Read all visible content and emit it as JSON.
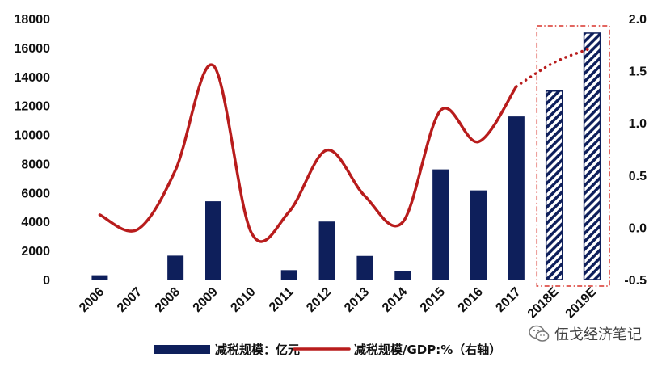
{
  "chart_data": {
    "type": "bar",
    "categories": [
      "2006",
      "2007",
      "2008",
      "2009",
      "2010",
      "2011",
      "2012",
      "2013",
      "2014",
      "2015",
      "2016",
      "2017",
      "2018E",
      "2019E"
    ],
    "series": [
      {
        "name": "减税规模：亿元",
        "kind": "bar",
        "axis": "left",
        "values": [
          300,
          0,
          1650,
          5400,
          0,
          650,
          4000,
          1630,
          560,
          7600,
          6150,
          11250,
          13000,
          17000
        ],
        "estimated_from": "2018E"
      },
      {
        "name": "减税规模/GDP:%（右轴）",
        "kind": "line",
        "axis": "right",
        "values": [
          0.12,
          -0.02,
          0.55,
          1.55,
          -0.05,
          0.15,
          0.74,
          0.3,
          0.05,
          1.12,
          0.82,
          1.35,
          1.58,
          1.72
        ],
        "dotted_from": "2017"
      }
    ],
    "y_left": {
      "ticks": [
        0,
        2000,
        4000,
        6000,
        8000,
        10000,
        12000,
        14000,
        16000,
        18000
      ],
      "range": [
        0,
        18000
      ]
    },
    "y_right": {
      "ticks": [
        -0.5,
        0.0,
        0.5,
        1.0,
        1.5,
        2.0
      ],
      "tick_labels": [
        "-0.5",
        "0.0",
        "0.5",
        "1.0",
        "1.5",
        "2.0"
      ],
      "range": [
        -0.5,
        2.0
      ]
    },
    "colors": {
      "bar": "#0e1f5b",
      "line": "#b81c1c",
      "highlight_box": "#d9342b"
    },
    "highlight": [
      "2018E",
      "2019E"
    ],
    "legend_position": "bottom"
  },
  "watermark": {
    "text": "伍戈经济笔记",
    "icon": "wechat-icon"
  }
}
